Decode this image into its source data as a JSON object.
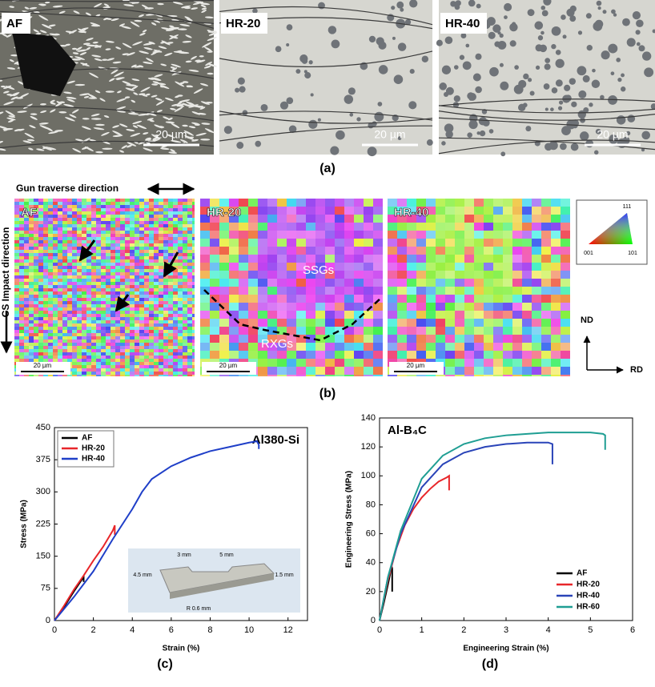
{
  "panels": {
    "a": {
      "label": "(a)",
      "images": [
        {
          "tag": "AF",
          "scale_bar": "20 µm"
        },
        {
          "tag": "HR-20",
          "scale_bar": "20 µm"
        },
        {
          "tag": "HR-40",
          "scale_bar": "20 µm"
        }
      ]
    },
    "b": {
      "label": "(b)",
      "gun_direction": "Gun traverse direction",
      "impact_direction": "CS Impact direction",
      "images": [
        {
          "tag": "AF",
          "scale_bar": "20 µm"
        },
        {
          "tag": "HR-20",
          "scale_bar": "20 µm",
          "regions": [
            "SSGs",
            "RXGs"
          ]
        },
        {
          "tag": "HR-40",
          "scale_bar": "20 µm"
        }
      ],
      "ipf_key": [
        "111",
        "001",
        "101"
      ],
      "axes": [
        "ND",
        "RD"
      ]
    }
  },
  "chart_data": [
    {
      "type": "line",
      "panel_label": "(c)",
      "title": "Al380-Si",
      "xlabel": "Strain (%)",
      "ylabel": "Stress (MPa)",
      "xlim": [
        0,
        13
      ],
      "xticks": [
        0,
        2,
        4,
        6,
        8,
        10,
        12
      ],
      "ylim": [
        0,
        450
      ],
      "yticks": [
        0,
        75,
        150,
        225,
        300,
        375,
        450
      ],
      "legend": "top-left",
      "annotations": [
        "3 mm",
        "5 mm",
        "4.5 mm",
        "1.5 mm",
        "R 0.6 mm"
      ],
      "series": [
        {
          "name": "AF",
          "color": "#000000",
          "x": [
            0,
            0.5,
            1,
            1.4,
            1.5,
            1.5
          ],
          "values": [
            0,
            32,
            68,
            95,
            103,
            90
          ]
        },
        {
          "name": "HR-20",
          "color": "#e8262a",
          "x": [
            0,
            0.5,
            1,
            1.5,
            2,
            2.5,
            3,
            3.1,
            3.1
          ],
          "values": [
            0,
            35,
            72,
            105,
            140,
            172,
            210,
            222,
            200
          ]
        },
        {
          "name": "HR-40",
          "color": "#1f3fc8",
          "x": [
            0,
            1,
            2,
            3,
            4,
            4.5,
            5,
            6,
            7,
            8,
            9,
            10,
            10.4,
            10.5,
            10.5
          ],
          "values": [
            0,
            55,
            115,
            190,
            260,
            300,
            330,
            360,
            380,
            395,
            405,
            415,
            418,
            410,
            400
          ]
        }
      ]
    },
    {
      "type": "line",
      "panel_label": "(d)",
      "title": "Al-B₄C",
      "xlabel": "Engineering Strain (%)",
      "ylabel": "Engineering Stress (MPa)",
      "xlim": [
        0,
        6
      ],
      "xticks": [
        0,
        1,
        2,
        3,
        4,
        5,
        6
      ],
      "ylim": [
        0,
        140
      ],
      "yticks": [
        0,
        20,
        40,
        60,
        80,
        100,
        120,
        140
      ],
      "legend": "bottom-right",
      "series": [
        {
          "name": "AF",
          "color": "#000000",
          "x": [
            0,
            0.1,
            0.2,
            0.25,
            0.28,
            0.3,
            0.3
          ],
          "values": [
            0,
            12,
            25,
            32,
            38,
            36,
            20
          ]
        },
        {
          "name": "HR-20",
          "color": "#e8262a",
          "x": [
            0,
            0.2,
            0.4,
            0.6,
            0.8,
            1.0,
            1.2,
            1.4,
            1.6,
            1.65,
            1.65
          ],
          "values": [
            0,
            28,
            50,
            66,
            77,
            85,
            91,
            96,
            99,
            100,
            90
          ]
        },
        {
          "name": "HR-40",
          "color": "#2a44b8",
          "x": [
            0,
            0.2,
            0.5,
            1,
            1.5,
            2,
            2.5,
            3,
            3.5,
            4,
            4.1,
            4.1
          ],
          "values": [
            0,
            30,
            60,
            92,
            108,
            116,
            120,
            122,
            123,
            123,
            122,
            108
          ]
        },
        {
          "name": "HR-60",
          "color": "#1f9e93",
          "x": [
            0,
            0.2,
            0.5,
            1,
            1.5,
            2,
            2.5,
            3,
            3.5,
            4,
            4.5,
            5,
            5.3,
            5.35,
            5.35
          ],
          "values": [
            0,
            30,
            62,
            98,
            114,
            122,
            126,
            128,
            129,
            130,
            130,
            130,
            129,
            128,
            118
          ]
        }
      ]
    }
  ]
}
